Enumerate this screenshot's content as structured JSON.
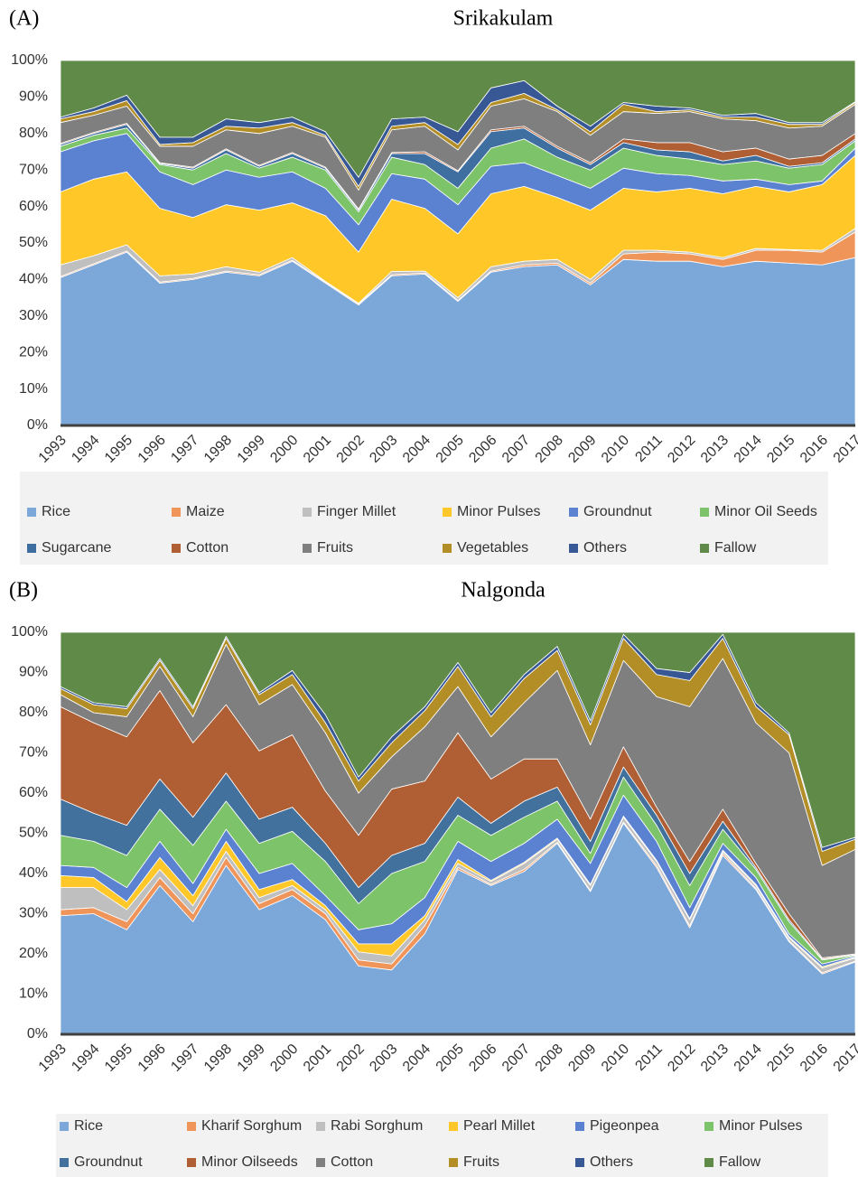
{
  "chart_data": [
    {
      "type": "stacked_area",
      "panel_label": "(A)",
      "title": "Srikakulam",
      "categories": [
        "1993",
        "1994",
        "1995",
        "1996",
        "1997",
        "1998",
        "1999",
        "2000",
        "2001",
        "2002",
        "2003",
        "2004",
        "2005",
        "2006",
        "2007",
        "2008",
        "2009",
        "2010",
        "2011",
        "2012",
        "2013",
        "2014",
        "2015",
        "2016",
        "2017"
      ],
      "ylim": [
        0,
        100
      ],
      "yticks": [
        {
          "value": 0,
          "label": "0%"
        },
        {
          "value": 10,
          "label": "10%"
        },
        {
          "value": 20,
          "label": "20%"
        },
        {
          "value": 30,
          "label": "30%"
        },
        {
          "value": 40,
          "label": "40%"
        },
        {
          "value": 50,
          "label": "50%"
        },
        {
          "value": 60,
          "label": "60%"
        },
        {
          "value": 70,
          "label": "70%"
        },
        {
          "value": 80,
          "label": "80%"
        },
        {
          "value": 90,
          "label": "90%"
        },
        {
          "value": 100,
          "label": "100%"
        }
      ],
      "grid": true,
      "series": [
        {
          "name": "Rice",
          "color": "#7ba7d9",
          "values": [
            40.5,
            44,
            47.5,
            39,
            40,
            42,
            41,
            45,
            39,
            33,
            41,
            41.5,
            34,
            42,
            43.5,
            44,
            38.5,
            45.5,
            45,
            45,
            43.5,
            45,
            44.5,
            44,
            46
          ]
        },
        {
          "name": "Maize",
          "color": "#f0955a",
          "values": [
            0.3,
            0.3,
            0.3,
            0.3,
            0.3,
            0.3,
            0.3,
            0.3,
            0.3,
            0.3,
            0.3,
            0.3,
            0.3,
            0.3,
            0.5,
            0.5,
            0.5,
            1.5,
            2.5,
            2,
            2,
            3,
            3.5,
            3.5,
            7
          ]
        },
        {
          "name": "Finger Millet",
          "color": "#bfbfbf",
          "values": [
            3.2,
            2.2,
            1.7,
            1.7,
            1.2,
            1.2,
            0.7,
            0.7,
            0.2,
            0.2,
            0.9,
            0.5,
            0.7,
            1.2,
            1,
            1,
            1,
            1,
            0.5,
            0.5,
            0.5,
            0.5,
            0.2,
            0.5,
            1
          ]
        },
        {
          "name": "Minor Pulses",
          "color": "#ffc728",
          "values": [
            20,
            21,
            20,
            18.5,
            15.5,
            17,
            17,
            15,
            18,
            14,
            19.8,
            17.2,
            17.5,
            20,
            20.5,
            17,
            19,
            17,
            16,
            17.5,
            17.5,
            17,
            15.8,
            18,
            20
          ]
        },
        {
          "name": "Groundnut",
          "color": "#5b82d1",
          "values": [
            11,
            10.5,
            10.5,
            10,
            9,
            9.5,
            9,
            8.5,
            7.5,
            7.5,
            7,
            8,
            8,
            7.5,
            6.5,
            6,
            6,
            5.5,
            5,
            3.5,
            3.5,
            2,
            2,
            1,
            2
          ]
        },
        {
          "name": "Minor Oil Seeds",
          "color": "#7cc36a",
          "values": [
            1.5,
            1.5,
            1.5,
            2,
            4,
            4.5,
            2.5,
            4,
            5,
            3.5,
            4.5,
            4,
            4.5,
            5,
            6.5,
            5,
            5,
            5.5,
            5,
            4.5,
            4.5,
            5,
            4.5,
            4.5,
            2
          ]
        },
        {
          "name": "Sugarcane",
          "color": "#3f6fa0",
          "values": [
            0.5,
            0.5,
            1,
            0.3,
            0.5,
            1,
            0.5,
            1,
            0.5,
            0.5,
            1,
            3,
            4.5,
            4.5,
            3,
            2.5,
            1.5,
            1.5,
            1.5,
            2,
            1,
            1.5,
            0.5,
            0.5,
            0.5
          ]
        },
        {
          "name": "Cotton",
          "color": "#b05e33",
          "values": [
            0.3,
            0.3,
            0.3,
            0.2,
            0.3,
            0.3,
            0.3,
            0.3,
            0.3,
            0.3,
            0.3,
            0.5,
            0.3,
            0.5,
            0.5,
            0.5,
            0.5,
            1,
            2,
            2.5,
            2.5,
            2,
            2,
            2,
            1.5
          ]
        },
        {
          "name": "Fruits",
          "color": "#7f7f7f",
          "values": [
            5.7,
            4.7,
            4.7,
            4.5,
            5.7,
            5.2,
            8.7,
            7.2,
            8.2,
            5.2,
            6.2,
            7,
            5.7,
            6.5,
            7.5,
            9.5,
            7.5,
            7.5,
            8,
            8.5,
            9,
            7.5,
            8.5,
            8,
            8
          ]
        },
        {
          "name": "Vegetables",
          "color": "#b38e26",
          "values": [
            1,
            1,
            1.5,
            0.5,
            1,
            1,
            1.5,
            1,
            0.5,
            1,
            1,
            1,
            1.5,
            1,
            1.5,
            0.5,
            1,
            2,
            0.5,
            0.5,
            0.5,
            1,
            1,
            0.5,
            0.5
          ]
        },
        {
          "name": "Others",
          "color": "#375894",
          "values": [
            0.5,
            1,
            1.5,
            2,
            1.5,
            2,
            1.5,
            1.5,
            1,
            2.5,
            2,
            1.5,
            3.5,
            4,
            3.5,
            1,
            1.5,
            0.5,
            1.5,
            0.5,
            0.5,
            1,
            0.5,
            0.5,
            0.2
          ]
        },
        {
          "name": "Fallow",
          "color": "#5f8a47",
          "values": [
            15.5,
            13,
            9.5,
            21,
            21,
            16,
            17,
            15.5,
            19.5,
            32,
            16,
            15.5,
            19.5,
            7.5,
            5.5,
            12.5,
            18,
            11.5,
            12.5,
            13,
            15,
            14.5,
            17,
            17,
            11.3
          ]
        }
      ]
    },
    {
      "type": "stacked_area",
      "panel_label": "(B)",
      "title": "Nalgonda",
      "categories": [
        "1993",
        "1994",
        "1995",
        "1996",
        "1997",
        "1998",
        "1999",
        "2000",
        "2001",
        "2002",
        "2003",
        "2004",
        "2005",
        "2006",
        "2007",
        "2008",
        "2009",
        "2010",
        "2011",
        "2012",
        "2013",
        "2014",
        "2015",
        "2016",
        "2017"
      ],
      "ylim": [
        0,
        100
      ],
      "yticks": [
        {
          "value": 0,
          "label": "0%"
        },
        {
          "value": 10,
          "label": "10%"
        },
        {
          "value": 20,
          "label": "20%"
        },
        {
          "value": 30,
          "label": "30%"
        },
        {
          "value": 40,
          "label": "40%"
        },
        {
          "value": 50,
          "label": "50%"
        },
        {
          "value": 60,
          "label": "60%"
        },
        {
          "value": 70,
          "label": "70%"
        },
        {
          "value": 80,
          "label": "80%"
        },
        {
          "value": 90,
          "label": "90%"
        },
        {
          "value": 100,
          "label": "100%"
        }
      ],
      "grid": true,
      "series": [
        {
          "name": "Rice",
          "color": "#7ba7d9",
          "values": [
            29.5,
            30,
            26,
            37,
            28,
            42,
            31,
            34.5,
            28.5,
            17,
            16,
            25,
            41,
            37,
            40.5,
            47.5,
            35.5,
            52.5,
            41.5,
            26.5,
            44.5,
            36,
            23,
            15,
            18
          ]
        },
        {
          "name": "Kharif Sorghum",
          "color": "#f0955a",
          "values": [
            1.5,
            1.5,
            2,
            2,
            2,
            2,
            1.5,
            1.5,
            1.5,
            1.5,
            1.5,
            2,
            0.5,
            0.3,
            0.5,
            0.3,
            0.3,
            0.3,
            0.5,
            0.5,
            0.5,
            0.3,
            0.3,
            0.3,
            0.2
          ]
        },
        {
          "name": "Rabi Sorghum",
          "color": "#bfbfbf",
          "values": [
            5.5,
            5,
            3,
            2,
            2,
            1.5,
            1.5,
            1,
            1,
            2,
            2,
            1.5,
            1,
            0.7,
            1.5,
            0.7,
            1.2,
            1.2,
            1,
            1.5,
            0.5,
            0.7,
            0.7,
            1.2,
            0.8
          ]
        },
        {
          "name": "Pearl Millet",
          "color": "#ffc728",
          "values": [
            3,
            2.5,
            2,
            3,
            2.5,
            2.5,
            2,
            1.5,
            1,
            2,
            3,
            1,
            1,
            0.3,
            0.3,
            0.3,
            0.3,
            0.3,
            0.3,
            0.3,
            0.3,
            0.3,
            0.3,
            0.3,
            0.2
          ]
        },
        {
          "name": "Pigeonpea",
          "color": "#5b82d1",
          "values": [
            2.5,
            2.5,
            3.5,
            4,
            3,
            3,
            4,
            4,
            2.5,
            3.5,
            5,
            4.5,
            4.5,
            4.7,
            4.7,
            4.7,
            5.2,
            5.2,
            4.7,
            2.7,
            1.7,
            1.7,
            0.7,
            0.7,
            0.3
          ]
        },
        {
          "name": "Minor Pulses",
          "color": "#7cc36a",
          "values": [
            7.5,
            6.5,
            8,
            8,
            9.5,
            7,
            7.5,
            8,
            8.5,
            6.5,
            12.5,
            9,
            6.5,
            6.5,
            6.5,
            4.5,
            2.5,
            4.5,
            4,
            5.5,
            3.5,
            2,
            3,
            1,
            0.2
          ]
        },
        {
          "name": "Groundnut",
          "color": "#41719c",
          "values": [
            9,
            7,
            7.5,
            7.5,
            7,
            7,
            6,
            6,
            4.5,
            4,
            4.5,
            4.5,
            4.5,
            3,
            4,
            3.5,
            3,
            2.5,
            2.5,
            3,
            2,
            0.5,
            0.5,
            0.2,
            0.1
          ]
        },
        {
          "name": "Minor Oilseeds",
          "color": "#b05e33",
          "values": [
            23,
            22.5,
            22,
            22,
            18.5,
            17,
            17,
            18,
            13,
            13,
            16.5,
            15.5,
            16,
            11,
            10.5,
            7,
            5.5,
            5,
            2,
            3,
            3,
            1,
            1.5,
            0.3,
            0.2
          ]
        },
        {
          "name": "Cotton",
          "color": "#7f7f7f",
          "values": [
            3,
            2.5,
            5,
            6,
            6.5,
            15,
            11.5,
            12.5,
            14.5,
            10.5,
            8,
            13.5,
            11.5,
            10.5,
            14,
            22,
            18.5,
            21.5,
            27.5,
            38.5,
            37.5,
            35,
            40,
            23,
            26
          ]
        },
        {
          "name": "Fruits",
          "color": "#b38e26",
          "values": [
            1.5,
            2,
            2,
            1.5,
            2,
            1.5,
            2.5,
            2.5,
            2.5,
            3,
            3.5,
            4,
            5,
            5,
            6,
            5,
            5,
            5.5,
            5.5,
            6.5,
            5,
            4,
            4.5,
            3.5,
            2.5
          ]
        },
        {
          "name": "Others",
          "color": "#375894",
          "values": [
            0.5,
            0.5,
            0.5,
            0.5,
            0.5,
            0.5,
            0.5,
            1,
            2,
            1,
            1.5,
            1,
            1,
            1,
            1,
            1,
            1,
            1,
            1.5,
            2,
            1,
            1,
            0.5,
            1,
            0.5
          ]
        },
        {
          "name": "Fallow",
          "color": "#5f8a47",
          "values": [
            13.5,
            17.5,
            18.5,
            6.5,
            18.5,
            1,
            15,
            9.5,
            20.5,
            36,
            26,
            18.5,
            7.5,
            20,
            10.5,
            3.5,
            22,
            0.5,
            9,
            10,
            0.5,
            17.5,
            25,
            53.5,
            51
          ]
        }
      ]
    }
  ]
}
